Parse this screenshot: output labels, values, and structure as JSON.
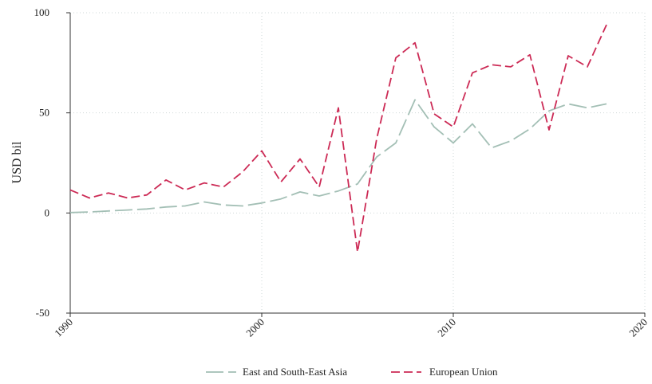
{
  "chart_data": {
    "type": "line",
    "title": "",
    "xlabel": "",
    "ylabel": "USD bil",
    "xlim": [
      1990,
      2020
    ],
    "ylim": [
      -50,
      100
    ],
    "x_ticks": [
      1990,
      2000,
      2010,
      2020
    ],
    "y_ticks": [
      -50,
      0,
      50,
      100
    ],
    "grid": true,
    "legend_position": "bottom",
    "series": [
      {
        "name": "East and South-East Asia",
        "color": "#a3bfb5",
        "dash": "long-dash",
        "x": [
          1990,
          1991,
          1992,
          1993,
          1994,
          1995,
          1996,
          1997,
          1998,
          1999,
          2000,
          2001,
          2002,
          2003,
          2004,
          2005,
          2006,
          2007,
          2008,
          2009,
          2010,
          2011,
          2012,
          2013,
          2014,
          2015,
          2016,
          2017,
          2018
        ],
        "values": [
          0.2,
          0.5,
          1,
          1.5,
          2,
          3,
          3.5,
          5.5,
          4,
          3.5,
          5,
          7,
          10.5,
          8.5,
          11,
          14.5,
          28,
          35,
          56.5,
          43,
          35,
          44.5,
          32.5,
          36,
          42,
          51,
          54.5,
          52.5,
          54.5
        ]
      },
      {
        "name": "European Union",
        "color": "#cc2a55",
        "dash": "dash",
        "x": [
          1990,
          1991,
          1992,
          1993,
          1994,
          1995,
          1996,
          1997,
          1998,
          1999,
          2000,
          2001,
          2002,
          2003,
          2004,
          2005,
          2006,
          2007,
          2008,
          2009,
          2010,
          2011,
          2012,
          2013,
          2014,
          2015,
          2016,
          2017,
          2018
        ],
        "values": [
          11.5,
          7.5,
          10,
          7.5,
          9,
          16.5,
          11.5,
          15,
          13,
          20.5,
          31,
          15.5,
          27,
          13,
          52.5,
          -19.5,
          37,
          77.5,
          85,
          49.5,
          43,
          70,
          74,
          73,
          79,
          41.5,
          78.5,
          73,
          94
        ]
      }
    ]
  }
}
